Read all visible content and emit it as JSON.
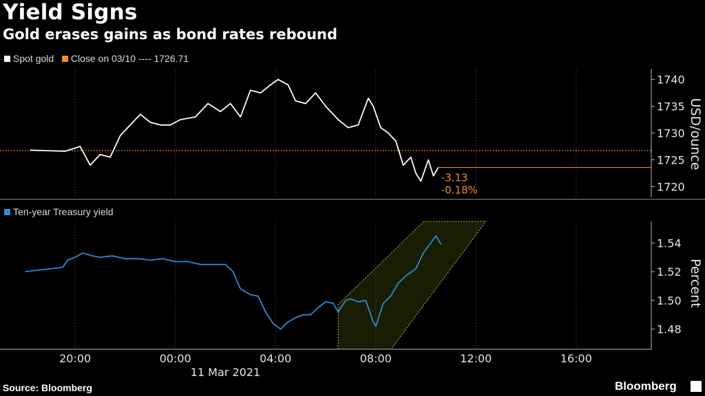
{
  "header": {
    "title": "Yield Signs",
    "subtitle": "Gold erases gains as bond rates rebound"
  },
  "legend_top": {
    "spot_gold": "Spot gold",
    "close_label": "Close on 03/10 ---- 1726.71",
    "spot_color": "#ffffff",
    "close_color": "#f28e2b"
  },
  "legend_bottom": {
    "series": "Ten-year Treasury yield",
    "color": "#2b8bd9"
  },
  "footer": {
    "source": "Source: Bloomberg",
    "brand": "Bloomberg"
  },
  "chart_data": [
    {
      "type": "line",
      "series": [
        {
          "name": "Spot gold",
          "color": "#ffffff",
          "x": [
            -5.8,
            -4.4,
            -3.8,
            -3.4,
            -3.0,
            -2.6,
            -2.2,
            -1.8,
            -1.4,
            -1.0,
            -0.6,
            -0.2,
            0.2,
            0.8,
            1.3,
            1.8,
            2.2,
            2.6,
            3.0,
            3.4,
            3.8,
            4.1,
            4.5,
            4.8,
            5.2,
            5.6,
            6.0,
            6.5,
            6.9,
            7.3,
            7.7,
            7.9,
            8.2,
            8.5,
            8.8,
            9.1,
            9.4,
            9.6,
            9.8,
            10.1,
            10.3,
            10.5
          ],
          "y": [
            1726.8,
            1726.6,
            1727.5,
            1724.0,
            1726.0,
            1725.5,
            1729.5,
            1731.5,
            1733.5,
            1732.0,
            1731.5,
            1731.5,
            1732.5,
            1733.0,
            1735.5,
            1734.0,
            1735.5,
            1733.0,
            1738.0,
            1737.5,
            1739.0,
            1740.0,
            1739.0,
            1736.0,
            1735.5,
            1737.5,
            1735.0,
            1732.5,
            1731.0,
            1731.5,
            1736.5,
            1735.0,
            1731.0,
            1730.0,
            1728.5,
            1724.0,
            1725.5,
            1722.5,
            1721.0,
            1725.0,
            1722.0,
            1723.58
          ]
        }
      ],
      "close": {
        "name": "Close on 03/10",
        "value": 1726.71,
        "color": "#f28e2b"
      },
      "annotations": [
        "-3.13",
        "-0.18%"
      ],
      "ylabel": "USD/ounce",
      "yticks": [
        1720,
        1725,
        1730,
        1735,
        1740
      ],
      "ylim": [
        1718,
        1742
      ]
    },
    {
      "type": "line",
      "series": [
        {
          "name": "Ten-year Treasury yield",
          "color": "#2b8bd9",
          "x": [
            -6.0,
            -4.5,
            -4.3,
            -4.0,
            -3.7,
            -3.3,
            -3.0,
            -2.5,
            -2.0,
            -1.5,
            -1.0,
            -0.5,
            0.0,
            0.5,
            1.0,
            1.5,
            2.0,
            2.3,
            2.6,
            3.0,
            3.3,
            3.6,
            3.9,
            4.2,
            4.5,
            4.8,
            5.1,
            5.4,
            5.7,
            6.0,
            6.3,
            6.5,
            6.8,
            7.0,
            7.3,
            7.6,
            7.9,
            8.0,
            8.3,
            8.6,
            8.9,
            9.2,
            9.6,
            9.9,
            10.2,
            10.4,
            10.6
          ],
          "y": [
            1.52,
            1.523,
            1.528,
            1.53,
            1.533,
            1.531,
            1.53,
            1.531,
            1.529,
            1.529,
            1.528,
            1.529,
            1.527,
            1.527,
            1.525,
            1.525,
            1.525,
            1.52,
            1.508,
            1.504,
            1.503,
            1.492,
            1.484,
            1.48,
            1.485,
            1.488,
            1.49,
            1.49,
            1.495,
            1.499,
            1.498,
            1.492,
            1.5,
            1.501,
            1.499,
            1.5,
            1.485,
            1.482,
            1.498,
            1.503,
            1.512,
            1.517,
            1.522,
            1.533,
            1.54,
            1.545,
            1.539
          ]
        }
      ],
      "ylabel": "Percent",
      "yticks": [
        1.48,
        1.5,
        1.52,
        1.54
      ],
      "ylim": [
        1.466,
        1.555
      ],
      "xticks": [
        "20:00",
        "00:00",
        "04:00",
        "08:00",
        "12:00",
        "16:00"
      ],
      "xtick_hours": [
        -4,
        0,
        4,
        8,
        12,
        16
      ],
      "xdate": "11 Mar 2021",
      "xlim": [
        -7,
        19
      ],
      "channel": {
        "from_x": 6.5,
        "to_x": 12.4
      }
    }
  ]
}
